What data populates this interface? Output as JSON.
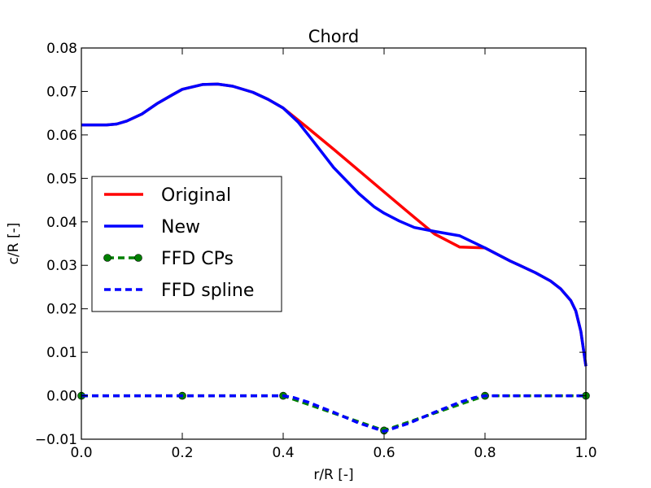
{
  "chart_data": {
    "type": "line",
    "title": "Chord",
    "xlabel": "r/R [-]",
    "ylabel": "c/R [-]",
    "xlim": [
      0.0,
      1.0
    ],
    "ylim": [
      -0.01,
      0.08
    ],
    "xticks": [
      "0.0",
      "0.2",
      "0.4",
      "0.6",
      "0.8",
      "1.0"
    ],
    "yticks": [
      "−0.01",
      "0.00",
      "0.01",
      "0.02",
      "0.03",
      "0.04",
      "0.05",
      "0.06",
      "0.07",
      "0.08"
    ],
    "grid": false,
    "legend_position": "center-left",
    "series": [
      {
        "name": "Original",
        "color": "#ff0000",
        "style": "solid",
        "x": [
          0.0,
          0.05,
          0.07,
          0.09,
          0.12,
          0.15,
          0.18,
          0.2,
          0.24,
          0.27,
          0.3,
          0.34,
          0.37,
          0.4,
          0.45,
          0.5,
          0.55,
          0.6,
          0.65,
          0.7,
          0.75,
          0.8,
          0.85,
          0.9,
          0.93,
          0.95,
          0.97,
          0.98,
          0.99,
          1.0
        ],
        "y": [
          0.0623,
          0.0623,
          0.0625,
          0.0632,
          0.0648,
          0.0672,
          0.0692,
          0.0705,
          0.0716,
          0.0717,
          0.0712,
          0.0698,
          0.0682,
          0.0662,
          0.0615,
          0.0567,
          0.0518,
          0.0469,
          0.042,
          0.0372,
          0.0342,
          0.034,
          0.031,
          0.0283,
          0.0264,
          0.0246,
          0.0219,
          0.0195,
          0.0148,
          0.0068
        ]
      },
      {
        "name": "New",
        "color": "#0000ff",
        "style": "solid",
        "x": [
          0.0,
          0.05,
          0.07,
          0.09,
          0.12,
          0.15,
          0.18,
          0.2,
          0.24,
          0.27,
          0.3,
          0.34,
          0.37,
          0.4,
          0.43,
          0.46,
          0.5,
          0.55,
          0.58,
          0.6,
          0.63,
          0.66,
          0.7,
          0.75,
          0.8,
          0.85,
          0.9,
          0.93,
          0.95,
          0.97,
          0.98,
          0.99,
          1.0
        ],
        "y": [
          0.0623,
          0.0623,
          0.0625,
          0.0632,
          0.0648,
          0.0672,
          0.0692,
          0.0705,
          0.0716,
          0.0717,
          0.0712,
          0.0698,
          0.0682,
          0.0662,
          0.0629,
          0.0585,
          0.0525,
          0.0465,
          0.0435,
          0.042,
          0.0402,
          0.0387,
          0.0378,
          0.0368,
          0.034,
          0.031,
          0.0283,
          0.0264,
          0.0246,
          0.0219,
          0.0195,
          0.0148,
          0.0068
        ]
      },
      {
        "name": "FFD CPs",
        "color": "#008000",
        "style": "dashed-markers",
        "x": [
          0.0,
          0.2,
          0.4,
          0.6,
          0.8,
          1.0
        ],
        "y": [
          0.0,
          0.0,
          0.0,
          -0.008,
          0.0,
          0.0
        ]
      },
      {
        "name": "FFD spline",
        "color": "#0000ff",
        "style": "dashed",
        "x": [
          0.0,
          0.2,
          0.4,
          0.42,
          0.45,
          0.5,
          0.55,
          0.6,
          0.65,
          0.7,
          0.75,
          0.78,
          0.8,
          1.0
        ],
        "y": [
          0.0,
          0.0,
          0.0,
          -0.0004,
          -0.0015,
          -0.0038,
          -0.0063,
          -0.0082,
          -0.0063,
          -0.0038,
          -0.0015,
          -0.0004,
          0.0,
          0.0
        ]
      }
    ]
  }
}
